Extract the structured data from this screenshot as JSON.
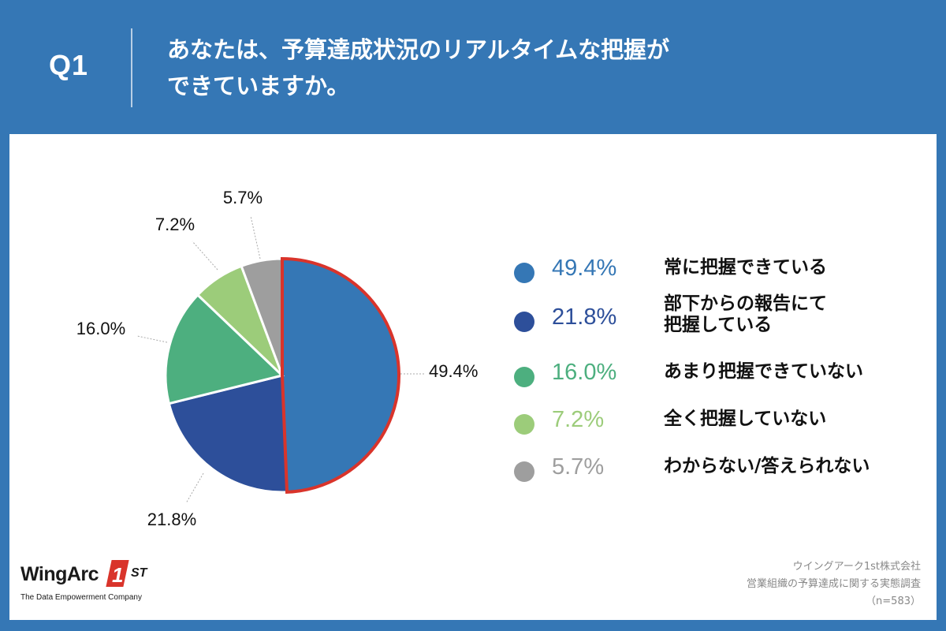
{
  "header": {
    "q_label": "Q1",
    "question_line1": "あなたは、予算達成状況のリアルタイムな把握が",
    "question_line2": "できていますか。"
  },
  "chart_data": {
    "type": "pie",
    "title": "あなたは、予算達成状況のリアルタイムな把握ができていますか。",
    "slices": [
      {
        "name": "常に把握できている",
        "value": 49.4,
        "label": "49.4%",
        "color": "#3577b5",
        "highlight": true
      },
      {
        "name": "部下からの報告にて把握している",
        "value": 21.8,
        "label": "21.8%",
        "color": "#2d4f9a",
        "highlight": false
      },
      {
        "name": "あまり把握できていない",
        "value": 16.0,
        "label": "16.0%",
        "color": "#4daf7f",
        "highlight": false
      },
      {
        "name": "全く把握していない",
        "value": 7.2,
        "label": "7.2%",
        "color": "#9ccc7a",
        "highlight": false
      },
      {
        "name": "わからない/答えられない",
        "value": 5.7,
        "label": "5.7%",
        "color": "#9e9e9e",
        "highlight": false
      }
    ],
    "start": "12 o'clock",
    "direction": "clockwise",
    "highlight_color": "#d9342b"
  },
  "legend": {
    "items": [
      {
        "pct": "49.4%",
        "label_lines": [
          "常に把握できている"
        ],
        "color": "#3577b5"
      },
      {
        "pct": "21.8%",
        "label_lines": [
          "部下からの報告にて",
          "把握している"
        ],
        "color": "#2d4f9a"
      },
      {
        "pct": "16.0%",
        "label_lines": [
          "あまり把握できていない"
        ],
        "color": "#4daf7f"
      },
      {
        "pct": "7.2%",
        "label_lines": [
          "全く把握していない"
        ],
        "color": "#9ccc7a"
      },
      {
        "pct": "5.7%",
        "label_lines": [
          "わからない/答えられない"
        ],
        "color": "#9e9e9e"
      }
    ]
  },
  "brand": {
    "name": "WingArc",
    "mark": "1",
    "suffix": "ST",
    "tagline": "The Data Empowerment Company"
  },
  "source": {
    "line1": "ウイングアーク1st株式会社",
    "line2": "営業組織の予算達成に関する実態調査",
    "line3": "（n=583）"
  }
}
